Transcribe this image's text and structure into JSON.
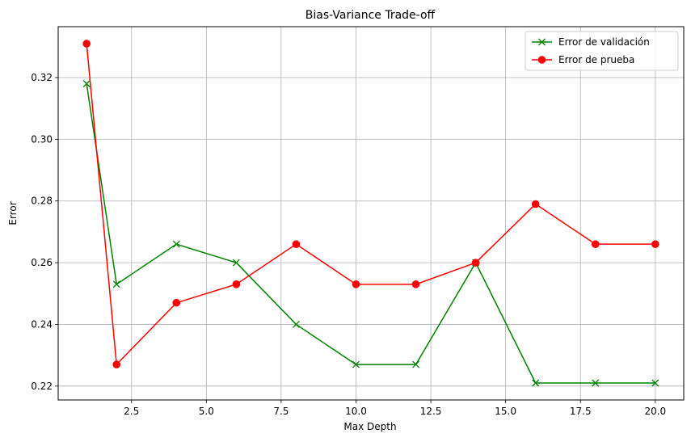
{
  "chart_data": {
    "type": "line",
    "title": "Bias-Variance Trade-off",
    "xlabel": "Max Depth",
    "ylabel": "Error",
    "xlim": [
      0.05,
      20.95
    ],
    "ylim": [
      0.2155,
      0.3365
    ],
    "xticks": [
      2.5,
      5.0,
      7.5,
      10.0,
      12.5,
      15.0,
      17.5,
      20.0
    ],
    "xtick_labels": [
      "2.5",
      "5.0",
      "7.5",
      "10.0",
      "12.5",
      "15.0",
      "17.5",
      "20.0"
    ],
    "yticks": [
      0.22,
      0.24,
      0.26,
      0.28,
      0.3,
      0.32
    ],
    "ytick_labels": [
      "0.22",
      "0.24",
      "0.26",
      "0.28",
      "0.30",
      "0.32"
    ],
    "grid": true,
    "legend_position": "top-right",
    "x": [
      1,
      2,
      4,
      6,
      8,
      10,
      12,
      14,
      16,
      18,
      20
    ],
    "series": [
      {
        "name": "Error de validación",
        "color": "#008000",
        "marker": "x",
        "values": [
          0.318,
          0.253,
          0.266,
          0.26,
          0.24,
          0.227,
          0.227,
          0.26,
          0.221,
          0.221,
          0.221
        ]
      },
      {
        "name": "Error de prueba",
        "color": "#ff0000",
        "marker": "circle",
        "values": [
          0.331,
          0.227,
          0.247,
          0.253,
          0.266,
          0.253,
          0.253,
          0.26,
          0.279,
          0.266,
          0.266
        ]
      }
    ]
  }
}
